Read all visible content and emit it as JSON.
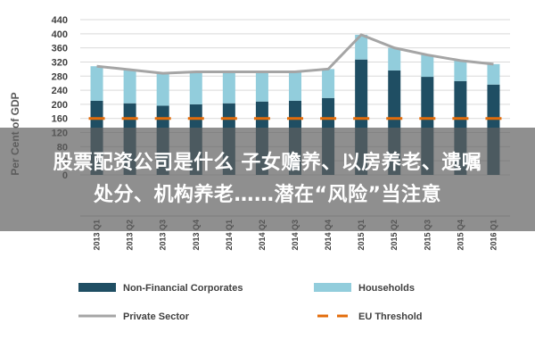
{
  "chart_data": {
    "type": "bar",
    "stacked": true,
    "ylabel": "Per Cent of GDP",
    "ylim": [
      0,
      440
    ],
    "yticks": [
      0,
      40,
      80,
      120,
      160,
      200,
      240,
      280,
      320,
      360,
      400,
      440
    ],
    "grid": true,
    "categories": [
      "2013 Q1",
      "2013 Q2",
      "2013 Q3",
      "2013 Q4",
      "2014 Q1",
      "2014 Q2",
      "2014 Q3",
      "2014 Q4",
      "2015 Q1",
      "2015 Q2",
      "2015 Q3",
      "2015 Q4",
      "2016 Q1"
    ],
    "series": [
      {
        "name": "Non-Financial Corporates",
        "kind": "bar",
        "color": "#1f4e63",
        "values": [
          210,
          203,
          196,
          200,
          203,
          208,
          210,
          218,
          327,
          296,
          278,
          266,
          256
        ]
      },
      {
        "name": "Households",
        "kind": "bar",
        "color": "#92cddc",
        "values": [
          98,
          95,
          92,
          92,
          89,
          84,
          82,
          82,
          70,
          64,
          62,
          58,
          58
        ]
      },
      {
        "name": "Private Sector",
        "kind": "line",
        "color": "#a5a5a5",
        "values": [
          308,
          298,
          288,
          292,
          292,
          292,
          292,
          300,
          397,
          360,
          340,
          324,
          314
        ]
      },
      {
        "name": "EU Threshold",
        "kind": "line",
        "dashed": true,
        "color": "#e36c0a",
        "values": [
          160,
          160,
          160,
          160,
          160,
          160,
          160,
          160,
          160,
          160,
          160,
          160,
          160
        ]
      }
    ],
    "legend_position": "bottom"
  },
  "overlay": {
    "line1": "股票配资公司是什么 子女赡养、以房养老、遗嘱",
    "line2": "处分、机构养老……潜在“风险”当注意"
  }
}
